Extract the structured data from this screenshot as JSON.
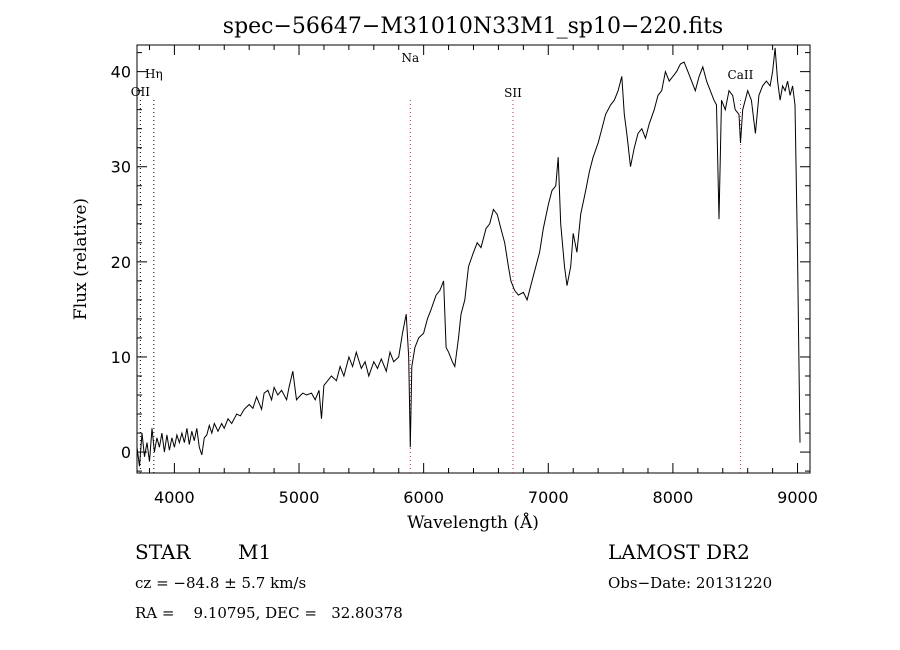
{
  "chart_data": {
    "type": "line",
    "title": "spec−56647−M31010N33M1_sp10−220.fits",
    "xlabel": "Wavelength (Å)",
    "ylabel": "Flux (relative)",
    "xlim": [
      3700,
      9100
    ],
    "ylim": [
      -2.2,
      42.8
    ],
    "xticks": [
      4000,
      5000,
      6000,
      7000,
      8000,
      9000
    ],
    "yticks": [
      0,
      10,
      20,
      30,
      40
    ],
    "grid": false,
    "spectral_lines": [
      {
        "name": "OII",
        "wavelength": 3727
      },
      {
        "name": "Hη",
        "wavelength": 3835
      },
      {
        "name": "Na",
        "wavelength": 5893
      },
      {
        "name": "SII",
        "wavelength": 6717
      },
      {
        "name": "CaII",
        "wavelength": 8542
      }
    ],
    "series": [
      {
        "color": "#000000",
        "points": [
          [
            3700,
            0.5
          ],
          [
            3720,
            -1.5
          ],
          [
            3740,
            2.0
          ],
          [
            3760,
            -0.5
          ],
          [
            3780,
            1.0
          ],
          [
            3800,
            -1.0
          ],
          [
            3820,
            2.5
          ],
          [
            3840,
            0.0
          ],
          [
            3860,
            1.5
          ],
          [
            3880,
            0.5
          ],
          [
            3900,
            2.0
          ],
          [
            3920,
            0.0
          ],
          [
            3940,
            1.8
          ],
          [
            3960,
            0.2
          ],
          [
            3980,
            1.5
          ],
          [
            4000,
            0.5
          ],
          [
            4020,
            1.8
          ],
          [
            4040,
            1.0
          ],
          [
            4060,
            2.0
          ],
          [
            4080,
            1.0
          ],
          [
            4100,
            2.5
          ],
          [
            4120,
            0.8
          ],
          [
            4140,
            2.2
          ],
          [
            4160,
            1.2
          ],
          [
            4180,
            2.5
          ],
          [
            4200,
            0.5
          ],
          [
            4220,
            -0.3
          ],
          [
            4240,
            1.5
          ],
          [
            4260,
            1.8
          ],
          [
            4280,
            2.8
          ],
          [
            4300,
            2.0
          ],
          [
            4320,
            3.0
          ],
          [
            4350,
            2.2
          ],
          [
            4380,
            3.0
          ],
          [
            4400,
            2.5
          ],
          [
            4430,
            3.5
          ],
          [
            4460,
            3.0
          ],
          [
            4500,
            4.0
          ],
          [
            4530,
            3.8
          ],
          [
            4560,
            4.5
          ],
          [
            4600,
            5.0
          ],
          [
            4630,
            4.6
          ],
          [
            4660,
            5.8
          ],
          [
            4700,
            4.5
          ],
          [
            4720,
            6.2
          ],
          [
            4750,
            6.5
          ],
          [
            4780,
            5.5
          ],
          [
            4800,
            6.8
          ],
          [
            4830,
            6.0
          ],
          [
            4860,
            6.5
          ],
          [
            4900,
            5.5
          ],
          [
            4920,
            6.8
          ],
          [
            4950,
            8.5
          ],
          [
            4980,
            5.5
          ],
          [
            5000,
            5.8
          ],
          [
            5030,
            6.2
          ],
          [
            5060,
            6.0
          ],
          [
            5100,
            6.2
          ],
          [
            5130,
            5.5
          ],
          [
            5160,
            6.5
          ],
          [
            5180,
            3.5
          ],
          [
            5200,
            7.0
          ],
          [
            5230,
            7.5
          ],
          [
            5260,
            8.0
          ],
          [
            5300,
            7.5
          ],
          [
            5330,
            9.0
          ],
          [
            5360,
            8.0
          ],
          [
            5400,
            10.0
          ],
          [
            5430,
            9.0
          ],
          [
            5460,
            10.5
          ],
          [
            5500,
            8.8
          ],
          [
            5530,
            9.5
          ],
          [
            5560,
            8.0
          ],
          [
            5600,
            9.5
          ],
          [
            5630,
            8.8
          ],
          [
            5660,
            9.8
          ],
          [
            5700,
            8.5
          ],
          [
            5730,
            10.5
          ],
          [
            5760,
            9.5
          ],
          [
            5800,
            10.0
          ],
          [
            5830,
            12.5
          ],
          [
            5860,
            14.5
          ],
          [
            5880,
            10.0
          ],
          [
            5893,
            0.5
          ],
          [
            5905,
            9.0
          ],
          [
            5930,
            11.0
          ],
          [
            5960,
            12.0
          ],
          [
            6000,
            12.5
          ],
          [
            6030,
            14.0
          ],
          [
            6060,
            15.0
          ],
          [
            6100,
            16.5
          ],
          [
            6130,
            17.0
          ],
          [
            6160,
            18.0
          ],
          [
            6180,
            11.0
          ],
          [
            6200,
            10.5
          ],
          [
            6230,
            9.5
          ],
          [
            6250,
            9.0
          ],
          [
            6280,
            12.0
          ],
          [
            6300,
            14.5
          ],
          [
            6330,
            16.0
          ],
          [
            6360,
            19.5
          ],
          [
            6400,
            21.0
          ],
          [
            6430,
            22.0
          ],
          [
            6460,
            21.5
          ],
          [
            6500,
            23.5
          ],
          [
            6530,
            24.0
          ],
          [
            6560,
            25.5
          ],
          [
            6590,
            25.0
          ],
          [
            6620,
            23.5
          ],
          [
            6650,
            22.0
          ],
          [
            6680,
            19.5
          ],
          [
            6700,
            18.0
          ],
          [
            6730,
            17.0
          ],
          [
            6760,
            16.5
          ],
          [
            6800,
            16.8
          ],
          [
            6830,
            16.0
          ],
          [
            6860,
            17.5
          ],
          [
            6900,
            19.5
          ],
          [
            6930,
            21.0
          ],
          [
            6960,
            23.5
          ],
          [
            7000,
            26.0
          ],
          [
            7030,
            27.5
          ],
          [
            7060,
            28.0
          ],
          [
            7080,
            31.0
          ],
          [
            7100,
            24.0
          ],
          [
            7130,
            19.5
          ],
          [
            7150,
            17.5
          ],
          [
            7180,
            19.5
          ],
          [
            7200,
            23.0
          ],
          [
            7230,
            21.0
          ],
          [
            7260,
            25.0
          ],
          [
            7300,
            27.5
          ],
          [
            7330,
            29.5
          ],
          [
            7360,
            31.0
          ],
          [
            7400,
            32.5
          ],
          [
            7430,
            34.0
          ],
          [
            7460,
            35.5
          ],
          [
            7500,
            36.5
          ],
          [
            7530,
            37.0
          ],
          [
            7560,
            38.0
          ],
          [
            7590,
            39.5
          ],
          [
            7610,
            35.5
          ],
          [
            7630,
            33.5
          ],
          [
            7660,
            30.0
          ],
          [
            7690,
            32.0
          ],
          [
            7720,
            33.5
          ],
          [
            7750,
            34.0
          ],
          [
            7780,
            33.0
          ],
          [
            7810,
            34.5
          ],
          [
            7850,
            36.0
          ],
          [
            7880,
            37.5
          ],
          [
            7910,
            38.0
          ],
          [
            7940,
            40.0
          ],
          [
            7970,
            39.0
          ],
          [
            8000,
            39.5
          ],
          [
            8030,
            40.0
          ],
          [
            8060,
            40.8
          ],
          [
            8090,
            41.0
          ],
          [
            8120,
            40.0
          ],
          [
            8150,
            39.0
          ],
          [
            8180,
            38.0
          ],
          [
            8210,
            39.5
          ],
          [
            8240,
            40.5
          ],
          [
            8270,
            39.0
          ],
          [
            8300,
            38.0
          ],
          [
            8330,
            37.0
          ],
          [
            8350,
            36.5
          ],
          [
            8370,
            24.5
          ],
          [
            8390,
            37.0
          ],
          [
            8420,
            36.0
          ],
          [
            8450,
            38.0
          ],
          [
            8480,
            37.5
          ],
          [
            8500,
            36.0
          ],
          [
            8530,
            35.5
          ],
          [
            8542,
            32.5
          ],
          [
            8560,
            36.0
          ],
          [
            8600,
            38.0
          ],
          [
            8630,
            37.0
          ],
          [
            8662,
            33.5
          ],
          [
            8690,
            37.5
          ],
          [
            8720,
            38.5
          ],
          [
            8750,
            39.0
          ],
          [
            8780,
            38.5
          ],
          [
            8800,
            40.0
          ],
          [
            8820,
            42.5
          ],
          [
            8840,
            39.0
          ],
          [
            8860,
            37.0
          ],
          [
            8880,
            38.5
          ],
          [
            8900,
            38.0
          ],
          [
            8920,
            39.0
          ],
          [
            8940,
            37.5
          ],
          [
            8960,
            38.5
          ],
          [
            8980,
            36.5
          ],
          [
            9000,
            21.0
          ],
          [
            9020,
            1.0
          ]
        ]
      }
    ]
  },
  "info": {
    "object_type": "STAR",
    "subclass": "M1",
    "survey": "LAMOST DR2",
    "redshift": "cz = −84.8 ± 5.7 km/s",
    "obs_date": "Obs−Date: 20131220",
    "coords": "RA =    9.10795, DEC =   32.80378"
  }
}
